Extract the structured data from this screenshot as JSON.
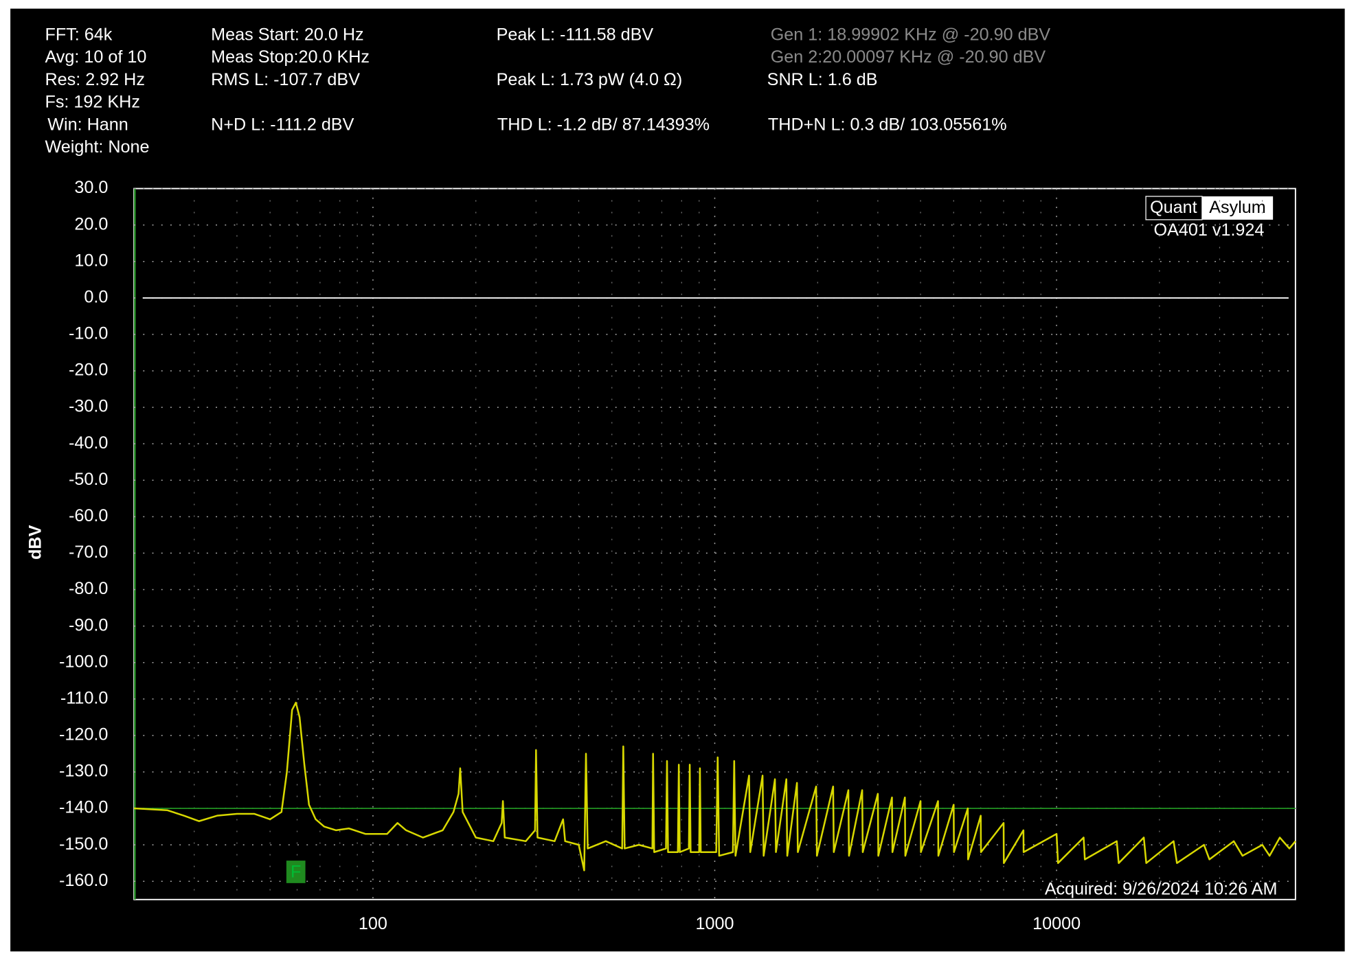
{
  "chart_data": {
    "type": "line",
    "y_label": "dBV",
    "info": [
      "FFT: 64k",
      "Avg: 10 of 10",
      "Res: 2.92 Hz",
      "Fs: 192 KHz",
      "Win: Hann",
      "Weight: None",
      "Meas Start: 20.0 Hz",
      "Meas Stop:20.0 KHz",
      "RMS L: -107.7 dBV",
      "N+D L: -111.2 dBV",
      "Peak L: -111.58 dBV",
      "Peak L: 1.73 pW (4.0 Ω)",
      "THD L: -1.2 dB/ 87.14393%",
      "Gen 1: 18.99902 KHz @ -20.90  dBV",
      "Gen 2:20.00097 KHz @ -20.90  dBV",
      "SNR L: 1.6 dB",
      "THD+N L: 0.3 dB/ 103.05561%"
    ],
    "logo": [
      "Quant",
      "Asylum"
    ],
    "version": "OA401 v1.924",
    "acquired": "Acquired: 9/26/2024  10:26 AM",
    "marker": "F",
    "xlog": true,
    "xlim": [
      20,
      50000
    ],
    "ylim": [
      -165,
      30
    ],
    "xticks": [
      100,
      1000,
      10000
    ],
    "x_minor_grid": [
      30,
      40,
      50,
      60,
      70,
      80,
      90,
      200,
      300,
      400,
      500,
      600,
      700,
      800,
      900,
      2000,
      3000,
      4000,
      5000,
      6000,
      7000,
      8000,
      9000,
      20000,
      30000,
      40000
    ],
    "yticks": [
      {
        "value": 30,
        "label": "30.0"
      },
      {
        "value": 20,
        "label": "20.0"
      },
      {
        "value": 10,
        "label": "10.0"
      },
      {
        "value": 0,
        "label": "0.0"
      },
      {
        "value": -10,
        "label": "-10.0"
      },
      {
        "value": -20,
        "label": "-20.0"
      },
      {
        "value": -30,
        "label": "-30.0"
      },
      {
        "value": -40,
        "label": "-40.0"
      },
      {
        "value": -50,
        "label": "-50.0"
      },
      {
        "value": -60,
        "label": "-60.0"
      },
      {
        "value": -70,
        "label": "-70.0"
      },
      {
        "value": -80,
        "label": "-80.0"
      },
      {
        "value": -90,
        "label": "-90.0"
      },
      {
        "value": -100,
        "label": "-100.0"
      },
      {
        "value": -110,
        "label": "-110.0"
      },
      {
        "value": -120,
        "label": "-120.0"
      },
      {
        "value": -130,
        "label": "-130.0"
      },
      {
        "value": -140,
        "label": "-140.0"
      },
      {
        "value": -150,
        "label": "-150.0"
      },
      {
        "value": -160,
        "label": "-160.0"
      }
    ],
    "grid": true,
    "reference_lines": [
      {
        "value": 0,
        "color": "#ffffff"
      },
      {
        "value": -140,
        "color": "#1f8a1f"
      }
    ],
    "x": [
      20,
      25,
      28,
      31,
      35,
      40,
      45,
      50,
      54,
      56,
      58,
      59.5,
      61,
      63,
      65,
      68,
      72,
      78,
      85,
      95,
      110,
      118,
      125,
      140,
      160,
      172,
      178,
      180,
      183,
      200,
      225,
      238,
      240,
      243,
      280,
      298,
      300,
      303,
      340,
      360,
      365,
      400,
      415,
      420,
      425,
      480,
      536,
      540,
      545,
      600,
      657,
      660,
      665,
      720,
      725,
      730,
      780,
      785,
      790,
      840,
      845,
      850,
      900,
      905,
      910,
      1010,
      1020,
      1030,
      1130,
      1140,
      1150,
      1260,
      1270,
      1380,
      1390,
      1500,
      1510,
      1620,
      1630,
      1740,
      1750,
      1980,
      1990,
      2220,
      2230,
      2460,
      2470,
      2700,
      2710,
      3000,
      3010,
      3300,
      3310,
      3600,
      3610,
      4000,
      4010,
      4500,
      4510,
      5000,
      5010,
      5500,
      5510,
      6000,
      6010,
      7000,
      7010,
      8000,
      8010,
      10000,
      10100,
      12000,
      12100,
      15000,
      15200,
      18000,
      18300,
      22000,
      22500,
      27000,
      28000,
      33000,
      35000,
      40000,
      42000,
      45000,
      48000,
      50000
    ],
    "series": [
      {
        "name": "L",
        "color": "#d8d800",
        "values": [
          -140,
          -140.5,
          -142,
          -143.5,
          -142,
          -141.5,
          -141.5,
          -143,
          -141,
          -130,
          -113,
          -111,
          -115,
          -128,
          -139,
          -143,
          -145,
          -146,
          -145.5,
          -147,
          -147,
          -144,
          -146,
          -148,
          -146,
          -141,
          -136,
          -129,
          -141,
          -148,
          -149,
          -144,
          -138,
          -148,
          -149,
          -146,
          -124,
          -148,
          -149,
          -143,
          -149,
          -150,
          -157,
          -125,
          -151,
          -149,
          -151,
          -123,
          -151,
          -150,
          -151,
          -125,
          -152,
          -151,
          -127,
          -152,
          -152,
          -128,
          -152,
          -151,
          -128,
          -152,
          -152,
          -129,
          -152,
          -152,
          -126,
          -153,
          -152,
          -127,
          -153,
          -131,
          -152,
          -131,
          -153,
          -132,
          -152,
          -132,
          -153,
          -133,
          -152,
          -134,
          -153,
          -134,
          -152,
          -135,
          -153,
          -135,
          -152,
          -136,
          -153,
          -137,
          -152,
          -137,
          -153,
          -138,
          -152,
          -138,
          -153,
          -139,
          -152,
          -140,
          -154,
          -142,
          -152,
          -144,
          -155,
          -146,
          -152,
          -147,
          -155,
          -148,
          -154,
          -149,
          -155,
          -148,
          -155,
          -149,
          -155,
          -150,
          -154,
          -149,
          -153,
          -150,
          -153,
          -148,
          -151,
          -149
        ]
      }
    ]
  }
}
